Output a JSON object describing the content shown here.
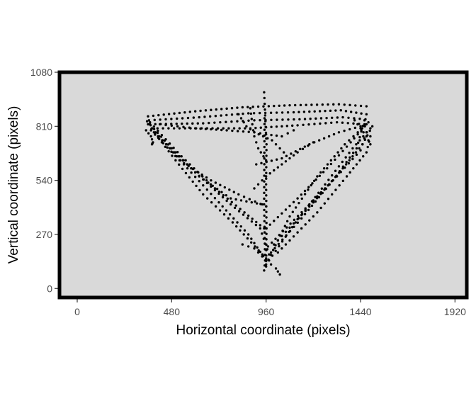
{
  "chart_data": {
    "type": "scatter",
    "title": "",
    "xlabel": "Horizontal coordinate (pixels)",
    "ylabel": "Vertical coordinate (pixels)",
    "xlim": [
      -90,
      1980
    ],
    "ylim": [
      -45,
      1080
    ],
    "x_ticks": [
      0,
      480,
      960,
      1440,
      1920
    ],
    "y_ticks": [
      0,
      270,
      540,
      810,
      1080
    ],
    "x_tick_labels": [
      "0",
      "480",
      "960",
      "1440",
      "1920"
    ],
    "y_tick_labels": [
      "0",
      "270",
      "540",
      "810",
      "1080"
    ],
    "grid": false,
    "legend": "none",
    "colors": {
      "panel": "#d9d9d9",
      "points": "#000000",
      "border": "#000000"
    },
    "series": [
      {
        "trajectories": [
          [
            [
              360,
              820
            ],
            [
              500,
              640
            ],
            [
              640,
              470
            ],
            [
              790,
              330
            ],
            [
              960,
              150
            ]
          ],
          [
            [
              380,
              800
            ],
            [
              560,
              600
            ],
            [
              720,
              430
            ],
            [
              870,
              270
            ],
            [
              960,
              140
            ]
          ],
          [
            [
              370,
              830
            ],
            [
              530,
              660
            ],
            [
              700,
              500
            ],
            [
              850,
              380
            ],
            [
              950,
              300
            ]
          ],
          [
            [
              390,
              780
            ],
            [
              600,
              580
            ],
            [
              780,
              420
            ],
            [
              930,
              300
            ],
            [
              975,
              170
            ]
          ],
          [
            [
              355,
              835
            ],
            [
              480,
              700
            ],
            [
              620,
              560
            ],
            [
              780,
              450
            ],
            [
              940,
              420
            ]
          ],
          [
            [
              375,
              790
            ],
            [
              520,
              640
            ],
            [
              680,
              540
            ],
            [
              820,
              470
            ],
            [
              960,
              410
            ]
          ],
          [
            [
              960,
              120
            ],
            [
              1080,
              360
            ],
            [
              1220,
              560
            ],
            [
              1360,
              720
            ],
            [
              1470,
              820
            ]
          ],
          [
            [
              975,
              140
            ],
            [
              1110,
              330
            ],
            [
              1260,
              520
            ],
            [
              1400,
              700
            ],
            [
              1490,
              800
            ]
          ],
          [
            [
              985,
              180
            ],
            [
              1140,
              350
            ],
            [
              1300,
              540
            ],
            [
              1420,
              700
            ],
            [
              1460,
              840
            ]
          ],
          [
            [
              960,
              300
            ],
            [
              1120,
              450
            ],
            [
              1270,
              600
            ],
            [
              1390,
              730
            ],
            [
              1480,
              830
            ]
          ],
          [
            [
              970,
              210
            ],
            [
              1160,
              400
            ],
            [
              1320,
              560
            ],
            [
              1440,
              690
            ],
            [
              1470,
              780
            ]
          ],
          [
            [
              1000,
              220
            ],
            [
              1200,
              430
            ],
            [
              1350,
              600
            ],
            [
              1450,
              720
            ],
            [
              1500,
              810
            ]
          ],
          [
            [
              1020,
              180
            ],
            [
              1220,
              380
            ],
            [
              1370,
              560
            ],
            [
              1470,
              680
            ],
            [
              1490,
              760
            ]
          ],
          [
            [
              360,
              860
            ],
            [
              600,
              885
            ],
            [
              840,
              905
            ],
            [
              1080,
              915
            ],
            [
              1330,
              920
            ],
            [
              1470,
              910
            ]
          ],
          [
            [
              365,
              840
            ],
            [
              620,
              855
            ],
            [
              870,
              875
            ],
            [
              1100,
              880
            ],
            [
              1340,
              890
            ],
            [
              1470,
              870
            ]
          ],
          [
            [
              370,
              820
            ],
            [
              640,
              825
            ],
            [
              900,
              840
            ],
            [
              1130,
              845
            ],
            [
              1350,
              855
            ],
            [
              1465,
              845
            ]
          ],
          [
            [
              380,
              800
            ],
            [
              660,
              800
            ],
            [
              880,
              800
            ],
            [
              1120,
              815
            ],
            [
              1320,
              830
            ],
            [
              1460,
              820
            ]
          ],
          [
            [
              960,
              110
            ],
            [
              962,
              300
            ],
            [
              960,
              520
            ],
            [
              962,
              720
            ],
            [
              950,
              980
            ]
          ],
          [
            [
              950,
              90
            ],
            [
              955,
              140
            ],
            [
              950,
              420
            ],
            [
              952,
              850
            ]
          ],
          [
            [
              820,
              870
            ],
            [
              860,
              810
            ],
            [
              900,
              780
            ],
            [
              960,
              770
            ],
            [
              1040,
              760
            ],
            [
              1100,
              790
            ]
          ],
          [
            [
              910,
              620
            ],
            [
              1040,
              650
            ],
            [
              1180,
              720
            ],
            [
              1330,
              780
            ],
            [
              1440,
              810
            ]
          ],
          [
            [
              420,
              820
            ],
            [
              600,
              800
            ],
            [
              760,
              790
            ],
            [
              900,
              780
            ],
            [
              990,
              740
            ],
            [
              1050,
              680
            ]
          ],
          [
            [
              900,
              500
            ],
            [
              960,
              560
            ],
            [
              1040,
              620
            ],
            [
              1120,
              680
            ],
            [
              1200,
              730
            ]
          ],
          [
            [
              840,
              220
            ],
            [
              900,
              200
            ],
            [
              960,
              140
            ],
            [
              1010,
              100
            ],
            [
              1030,
              70
            ]
          ],
          [
            [
              880,
              900
            ],
            [
              890,
              820
            ],
            [
              900,
              760
            ],
            [
              920,
              700
            ],
            [
              960,
              640
            ]
          ],
          [
            [
              350,
              790
            ],
            [
              375,
              760
            ],
            [
              385,
              730
            ],
            [
              380,
              720
            ]
          ],
          [
            [
              1410,
              840
            ],
            [
              1440,
              800
            ],
            [
              1470,
              760
            ],
            [
              1490,
              720
            ]
          ]
        ]
      }
    ]
  }
}
